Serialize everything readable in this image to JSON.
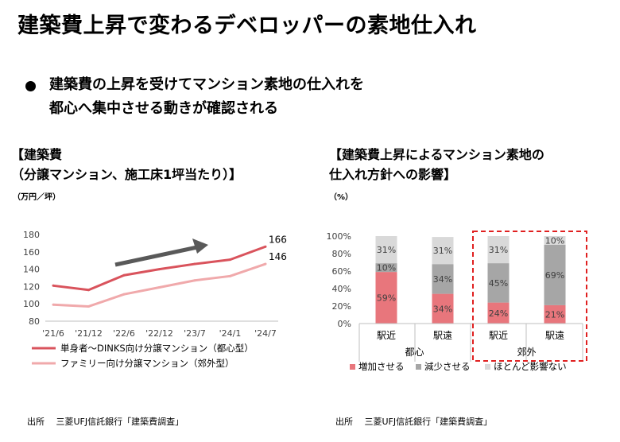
{
  "slide": {
    "title": "建築費上昇で変わるデベロッパーの素地仕入れ",
    "bullet_line1": "建築費の上昇を受けてマンション素地の仕入れを",
    "bullet_line2": "都心へ集中させる動きが確認される"
  },
  "left": {
    "heading1": "【建築費",
    "heading2": "（分譲マンション、施工床1坪当たり）】",
    "unit": "（万円／坪）",
    "source": "出所　 三菱UFJ信託銀行「建築費調査」"
  },
  "right": {
    "heading1": "【建築費上昇によるマンション素地の",
    "heading2": "仕入れ方針への影響】",
    "unit": "（%）",
    "source": "出所　 三菱UFJ信託銀行「建築費調査」"
  },
  "chart_data": [
    {
      "type": "line",
      "x": [
        "'21/6",
        "'21/12",
        "'22/6",
        "'22/12",
        "'23/7",
        "'24/1",
        "'24/7"
      ],
      "ylim": [
        80,
        180
      ],
      "yticks": [
        80,
        100,
        120,
        140,
        160,
        180
      ],
      "grid": false,
      "legend_position": "bottom",
      "series": [
        {
          "name": "単身者～DINKS向け分譲マンション（都心型）",
          "color": "#d9535c",
          "values": [
            121,
            116,
            133,
            140,
            146,
            151,
            166
          ],
          "end_label": "166"
        },
        {
          "name": "ファミリー向け分譲マンション（郊外型）",
          "color": "#f0a9ab",
          "values": [
            99,
            97,
            111,
            119,
            127,
            132,
            146
          ],
          "end_label": "146"
        }
      ]
    },
    {
      "type": "bar",
      "stacked": true,
      "categories": [
        "駅近",
        "駅遠",
        "駅近",
        "駅遠"
      ],
      "groups": [
        {
          "label": "都心",
          "categories": [
            "駅近",
            "駅遠"
          ]
        },
        {
          "label": "郊外",
          "categories": [
            "駅近",
            "駅遠"
          ]
        }
      ],
      "ylim": [
        0,
        100
      ],
      "yticks": [
        "0%",
        "20%",
        "40%",
        "60%",
        "80%",
        "100%"
      ],
      "legend_position": "bottom",
      "series": [
        {
          "name": "増加させる",
          "color": "#e8767c",
          "values": [
            59,
            34,
            24,
            21
          ]
        },
        {
          "name": "減少させる",
          "color": "#a6a6a6",
          "values": [
            10,
            34,
            45,
            69
          ]
        },
        {
          "name": "ほとんど影響ない",
          "color": "#d9d9d9",
          "values": [
            31,
            31,
            31,
            10
          ]
        }
      ],
      "value_labels": [
        [
          "59%",
          "34%",
          "24%",
          "21%"
        ],
        [
          "10%",
          "34%",
          "45%",
          "69%"
        ],
        [
          "31%",
          "31%",
          "31%",
          "10%"
        ]
      ],
      "highlight": {
        "group": "郊外",
        "color": "#e02020",
        "style": "dashed"
      }
    }
  ]
}
